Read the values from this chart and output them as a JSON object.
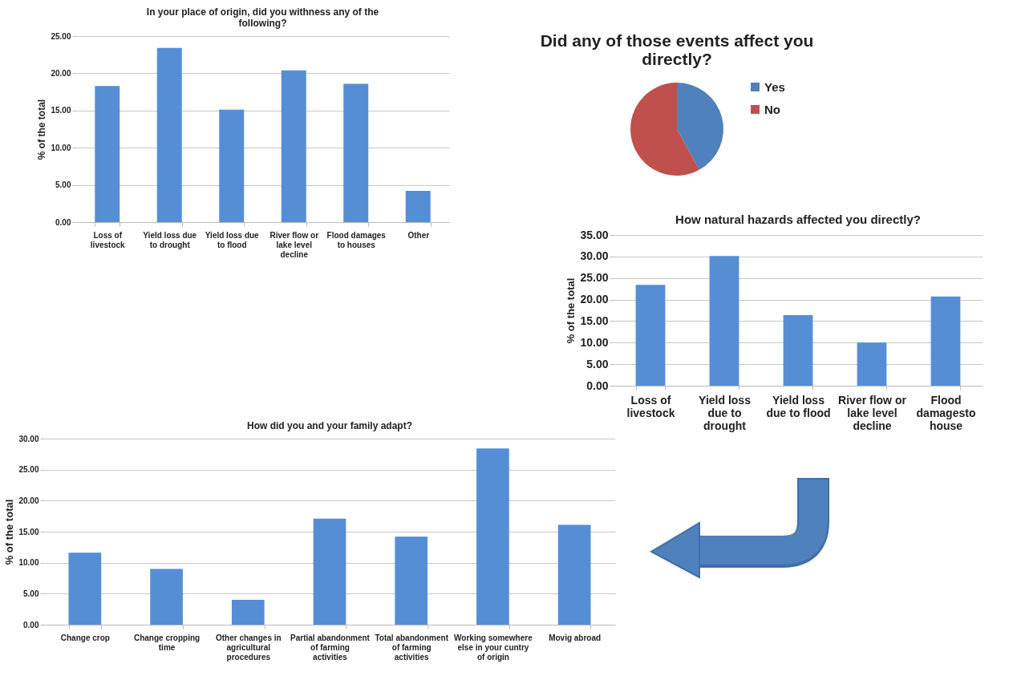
{
  "chart_data": [
    {
      "type": "bar",
      "title": "In your place of origin, did you withness any of the following?",
      "ylabel": "% of the total",
      "categories": [
        "Loss of livestock",
        "Yield loss due to drought",
        "Yield loss due to flood",
        "River flow or lake level decline",
        "Flood damages to houses",
        "Other"
      ],
      "values": [
        18.3,
        23.4,
        15.1,
        20.4,
        18.6,
        4.2
      ],
      "color": "#558ed5",
      "ylim": [
        0,
        25
      ],
      "yticks": [
        {
          "value": 0,
          "label": "0.00"
        },
        {
          "value": 5,
          "label": "5.00"
        },
        {
          "value": 10,
          "label": "10.00"
        },
        {
          "value": 15,
          "label": "15.00"
        },
        {
          "value": 20,
          "label": "20.00"
        },
        {
          "value": 25,
          "label": "25.00"
        }
      ],
      "grid": "y"
    },
    {
      "type": "pie",
      "title": "Did any of those events affect you directly?",
      "categories": [
        "Yes",
        "No"
      ],
      "values": [
        42,
        58
      ],
      "colors": [
        "#4f81bd",
        "#c0504d"
      ],
      "legend": "right"
    },
    {
      "type": "bar",
      "title": "How natural hazards affected you directly?",
      "ylabel": "% of the total",
      "categories": [
        "Loss of livestock",
        "Yield loss due to drought",
        "Yield loss due to flood",
        "River flow or lake level decline",
        "Flood damagesto house"
      ],
      "values": [
        23.4,
        30.1,
        16.4,
        10.0,
        20.7
      ],
      "color": "#558ed5",
      "ylim": [
        0,
        35
      ],
      "yticks": [
        {
          "value": 0,
          "label": "0.00"
        },
        {
          "value": 5,
          "label": "5.00"
        },
        {
          "value": 10,
          "label": "10.00"
        },
        {
          "value": 15,
          "label": "15.00"
        },
        {
          "value": 20,
          "label": "20.00"
        },
        {
          "value": 25,
          "label": "25.00"
        },
        {
          "value": 30,
          "label": "30.00"
        },
        {
          "value": 35,
          "label": "35.00"
        }
      ],
      "grid": "y"
    },
    {
      "type": "bar",
      "title": "How did you and your family adapt?",
      "ylabel": "% of the total",
      "categories": [
        "Change crop",
        "Change cropping time",
        "Other changes in agricultural procedures",
        "Partial abandonment of farming activities",
        "Total abandonment of farming activities",
        "Working somewhere else in your cuntry of origin",
        "Movig abroad"
      ],
      "values": [
        11.6,
        9.0,
        4.0,
        17.1,
        14.2,
        28.4,
        16.1
      ],
      "color": "#558ed5",
      "ylim": [
        0,
        30
      ],
      "yticks": [
        {
          "value": 0,
          "label": "0.00"
        },
        {
          "value": 5,
          "label": "5.00"
        },
        {
          "value": 10,
          "label": "10.00"
        },
        {
          "value": 15,
          "label": "15.00"
        },
        {
          "value": 20,
          "label": "20.00"
        },
        {
          "value": 25,
          "label": "25.00"
        },
        {
          "value": 30,
          "label": "30.00"
        }
      ],
      "grid": "y"
    }
  ]
}
